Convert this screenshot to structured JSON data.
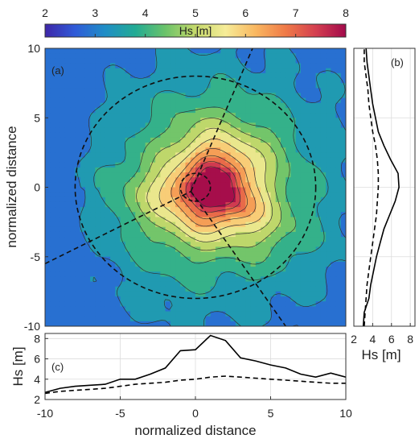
{
  "chart_data": [
    {
      "panel": "(a)",
      "type": "heatmap",
      "xlabel": "normalized distance",
      "ylabel": "normalized distance",
      "xlim": [
        -10,
        10
      ],
      "ylim": [
        -10,
        10
      ],
      "yticks": [
        -10,
        -5,
        0,
        5,
        10
      ],
      "colorbar": {
        "label": "Hs [m]",
        "range": [
          2,
          8
        ],
        "ticks": [
          2,
          3,
          4,
          5,
          6,
          7,
          8
        ],
        "colormap": [
          "#3e26a8",
          "#2f5bd8",
          "#1f8ec6",
          "#22ab94",
          "#6bc36a",
          "#c5d96b",
          "#f6ec98",
          "#f9b760",
          "#ef7a47",
          "#d43f50",
          "#a20a4b"
        ]
      },
      "field": {
        "peak": {
          "x": 1.2,
          "y": -0.1,
          "value": 8.0
        },
        "background": 2.6,
        "contour_levels": [
          3.2,
          3.7,
          4.2,
          4.7,
          5.2,
          5.7,
          6.2,
          6.7,
          7.2,
          7.7
        ]
      },
      "overlays": {
        "circle": {
          "center": [
            0,
            0
          ],
          "radius": 8
        },
        "inner_circle": {
          "center": [
            0,
            0
          ],
          "radius": 1
        },
        "track_lines": [
          {
            "x": [
              -10,
              -0.3
            ],
            "y": [
              -5.5,
              -0.3
            ]
          },
          {
            "x": [
              -0.3,
              3.8
            ],
            "y": [
              -0.3,
              10
            ]
          },
          {
            "x": [
              -0.3,
              6.0
            ],
            "y": [
              -0.3,
              -10
            ]
          }
        ]
      }
    },
    {
      "panel": "(b)",
      "type": "line",
      "xlabel": "Hs [m]",
      "xlim": [
        2,
        8.5
      ],
      "xticks": [
        2,
        4,
        6,
        8
      ],
      "ylim": [
        -10,
        10
      ],
      "y": [
        -10,
        -9,
        -8,
        -7,
        -6,
        -5,
        -4,
        -3,
        -2,
        -1,
        0,
        1,
        2,
        3,
        4,
        5,
        6,
        7,
        8,
        9,
        10
      ],
      "series": [
        {
          "style": "solid",
          "values": [
            3.0,
            3.1,
            3.6,
            3.8,
            4.1,
            4.4,
            4.8,
            5.2,
            5.8,
            6.4,
            6.8,
            6.7,
            5.9,
            5.2,
            4.6,
            4.3,
            4.0,
            3.8,
            3.6,
            3.4,
            3.3
          ]
        },
        {
          "style": "dashed",
          "values": [
            3.1,
            3.2,
            3.3,
            3.4,
            3.6,
            3.8,
            4.0,
            4.2,
            4.4,
            4.5,
            4.6,
            4.6,
            4.5,
            4.3,
            4.0,
            3.8,
            3.6,
            3.5,
            3.3,
            3.1,
            3.1
          ]
        }
      ]
    },
    {
      "panel": "(c)",
      "type": "line",
      "xlabel": "normalized distance",
      "ylabel": "Hs [m]",
      "xlim": [
        -10,
        10
      ],
      "xticks": [
        -10,
        -5,
        0,
        5,
        10
      ],
      "ylim": [
        2,
        8.5
      ],
      "yticks": [
        2,
        4,
        6,
        8
      ],
      "x": [
        -10,
        -9,
        -8,
        -7,
        -6,
        -5,
        -4,
        -3,
        -2,
        -1,
        0,
        1,
        2,
        3,
        4,
        5,
        6,
        7,
        8,
        9,
        10
      ],
      "series": [
        {
          "style": "solid",
          "values": [
            2.7,
            3.1,
            3.3,
            3.4,
            3.5,
            4.0,
            4.0,
            4.5,
            5.1,
            6.8,
            6.9,
            8.3,
            7.8,
            6.1,
            5.8,
            5.4,
            5.1,
            4.5,
            4.2,
            4.6,
            4.2
          ]
        },
        {
          "style": "dashed",
          "values": [
            2.6,
            2.8,
            2.9,
            3.0,
            3.1,
            3.3,
            3.5,
            3.6,
            3.7,
            3.9,
            4.0,
            4.2,
            4.3,
            4.2,
            4.1,
            4.0,
            3.9,
            3.8,
            3.7,
            3.6,
            3.6
          ]
        }
      ]
    }
  ]
}
